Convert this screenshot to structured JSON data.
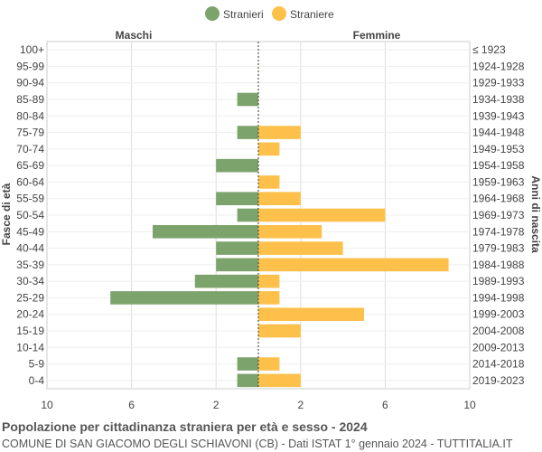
{
  "chart_data": {
    "type": "bar",
    "orientation": "horizontal-population-pyramid",
    "title": "Popolazione per cittadinanza straniera per età e sesso - 2024",
    "subtitle": "COMUNE DI SAN GIACOMO DEGLI SCHIAVONI (CB) - Dati ISTAT 1° gennaio 2024 - TUTTITALIA.IT",
    "legend": {
      "placement": "top-center",
      "entries": [
        "Stranieri",
        "Straniere"
      ]
    },
    "left_header": "Maschi",
    "right_header": "Femmine",
    "ylabel_left": "Fasce di età",
    "ylabel_right": "Anni di nascita",
    "xlim": [
      0,
      10
    ],
    "x_ticks": [
      "10",
      "6",
      "2",
      "2",
      "6",
      "10"
    ],
    "grid": true,
    "colors": {
      "males": "#7da36d",
      "females": "#fdc04b",
      "center_line": "#555544"
    },
    "categories": [
      "100+",
      "95-99",
      "90-94",
      "85-89",
      "80-84",
      "75-79",
      "70-74",
      "65-69",
      "60-64",
      "55-59",
      "50-54",
      "45-49",
      "40-44",
      "35-39",
      "30-34",
      "25-29",
      "20-24",
      "15-19",
      "10-14",
      "5-9",
      "0-4"
    ],
    "birth_years": [
      "≤ 1923",
      "1924-1928",
      "1929-1933",
      "1934-1938",
      "1939-1943",
      "1944-1948",
      "1949-1953",
      "1954-1958",
      "1959-1963",
      "1964-1968",
      "1969-1973",
      "1974-1978",
      "1979-1983",
      "1984-1988",
      "1989-1993",
      "1994-1998",
      "1999-2003",
      "2004-2008",
      "2009-2013",
      "2014-2018",
      "2019-2023"
    ],
    "series": [
      {
        "name": "Stranieri",
        "values": [
          0,
          0,
          0,
          1,
          0,
          1,
          0,
          2,
          0,
          2,
          1,
          5,
          2,
          2,
          3,
          7,
          0,
          0,
          0,
          1,
          1
        ]
      },
      {
        "name": "Straniere",
        "values": [
          0,
          0,
          0,
          0,
          0,
          2,
          1,
          0,
          1,
          2,
          6,
          3,
          4,
          9,
          1,
          1,
          5,
          2,
          0,
          1,
          2
        ]
      }
    ]
  }
}
